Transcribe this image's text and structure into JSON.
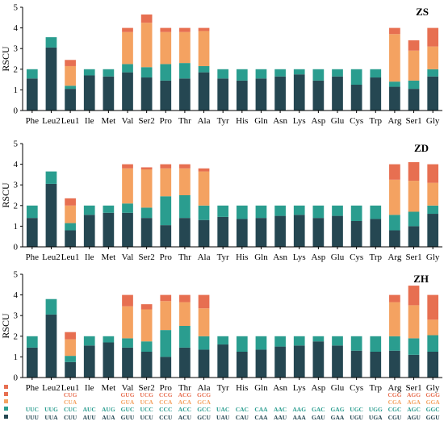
{
  "colors": {
    "layer1": "#254752",
    "layer2": "#2a9d8f",
    "layer3": "#f4a261",
    "layer4": "#e76f51"
  },
  "chart_data": [
    {
      "type": "bar",
      "stacked": true,
      "title": "ZS",
      "ylabel": "RSCU",
      "ylim": [
        0,
        5
      ],
      "yticks": [
        0,
        1,
        2,
        3,
        4,
        5
      ],
      "categories": [
        "Phe",
        "Leu2",
        "Leu1",
        "Ile",
        "Met",
        "Val",
        "Ser2",
        "Pro",
        "Thr",
        "Ala",
        "Tyr",
        "His",
        "Gln",
        "Asn",
        "Lys",
        "Asp",
        "Glu",
        "Cys",
        "Trp",
        "Arg",
        "Ser1",
        "Gly"
      ],
      "series": [
        {
          "values": [
            1.55,
            3.05,
            1.05,
            1.7,
            1.65,
            1.85,
            1.6,
            1.45,
            1.55,
            1.85,
            1.55,
            1.45,
            1.55,
            1.65,
            1.75,
            1.45,
            1.65,
            1.25,
            1.6,
            1.15,
            1.05,
            1.65
          ]
        },
        {
          "values": [
            0.45,
            0.5,
            0.15,
            0.3,
            0.35,
            0.4,
            0.5,
            0.8,
            0.75,
            0.3,
            0.45,
            0.55,
            0.45,
            0.35,
            0.25,
            0.55,
            0.35,
            0.75,
            0.4,
            0.25,
            0.4,
            0.35
          ]
        },
        {
          "values": [
            0,
            0,
            0.95,
            0,
            0,
            1.55,
            2.15,
            1.55,
            1.5,
            1.7,
            0,
            0,
            0,
            0,
            0,
            0,
            0,
            0,
            0,
            2.3,
            1.45,
            1.1
          ]
        },
        {
          "values": [
            0,
            0,
            0.3,
            0,
            0,
            0.2,
            0.4,
            0.2,
            0.2,
            0.15,
            0,
            0,
            0,
            0,
            0,
            0,
            0,
            0,
            0,
            0.3,
            0.5,
            0.9
          ]
        }
      ]
    },
    {
      "type": "bar",
      "stacked": true,
      "title": "ZD",
      "ylabel": "RSCU",
      "ylim": [
        0,
        5
      ],
      "yticks": [
        0,
        1,
        2,
        3,
        4,
        5
      ],
      "categories": [
        "Phe",
        "Leu2",
        "Leu1",
        "Ile",
        "Met",
        "Val",
        "Ser2",
        "Pro",
        "Thr",
        "Ala",
        "Tyr",
        "His",
        "Gln",
        "Asn",
        "Lys",
        "Asp",
        "Glu",
        "Cys",
        "Trp",
        "Arg",
        "Ser1",
        "Gly"
      ],
      "series": [
        {
          "values": [
            1.4,
            3.05,
            0.8,
            1.55,
            1.65,
            1.65,
            1.4,
            1.05,
            1.4,
            1.3,
            1.45,
            1.35,
            1.4,
            1.5,
            1.55,
            1.4,
            1.5,
            1.25,
            1.35,
            0.8,
            1.0,
            1.6
          ]
        },
        {
          "values": [
            0.6,
            0.6,
            0.35,
            0.45,
            0.35,
            0.45,
            0.5,
            1.4,
            1.1,
            0.7,
            0.55,
            0.65,
            0.6,
            0.5,
            0.45,
            0.6,
            0.5,
            0.75,
            0.65,
            0.75,
            0.7,
            0.4
          ]
        },
        {
          "values": [
            0,
            0,
            0.85,
            0,
            0,
            1.7,
            1.85,
            1.35,
            1.3,
            1.65,
            0,
            0,
            0,
            0,
            0,
            0,
            0,
            0,
            0,
            1.7,
            1.5,
            1.1
          ]
        },
        {
          "values": [
            0,
            0,
            0.35,
            0,
            0,
            0.2,
            0.1,
            0.2,
            0.2,
            0.15,
            0,
            0,
            0,
            0,
            0,
            0,
            0,
            0,
            0,
            0.75,
            0.9,
            0.9
          ]
        }
      ]
    },
    {
      "type": "bar",
      "stacked": true,
      "title": "ZH",
      "ylabel": "RSCU",
      "ylim": [
        0,
        5
      ],
      "yticks": [
        0,
        1,
        2,
        3,
        4,
        5
      ],
      "categories": [
        "Phe",
        "Leu2",
        "Leu1",
        "Ile",
        "Met",
        "Val",
        "Ser2",
        "Pro",
        "Thr",
        "Ala",
        "Tyr",
        "His",
        "Gln",
        "Asn",
        "Lys",
        "Asp",
        "Glu",
        "Cys",
        "Trp",
        "Arg",
        "Ser1",
        "Gly"
      ],
      "series": [
        {
          "values": [
            1.45,
            3.05,
            0.75,
            1.55,
            1.7,
            1.45,
            1.25,
            1.0,
            1.45,
            1.35,
            1.6,
            1.25,
            1.35,
            1.5,
            1.55,
            1.75,
            1.55,
            1.3,
            1.25,
            1.3,
            1.1,
            1.25
          ]
        },
        {
          "values": [
            0.55,
            0.75,
            0.3,
            0.45,
            0.3,
            0.45,
            0.5,
            1.3,
            1.05,
            0.65,
            0.4,
            0.75,
            0.65,
            0.5,
            0.45,
            0.25,
            0.45,
            0.7,
            0.75,
            0.7,
            0.8,
            0.8
          ]
        },
        {
          "values": [
            0,
            0,
            0.8,
            0,
            0,
            1.55,
            1.55,
            1.4,
            1.15,
            1.35,
            0,
            0,
            0,
            0,
            0,
            0,
            0,
            0,
            0,
            1.65,
            1.6,
            0.75
          ]
        },
        {
          "values": [
            0,
            0,
            0.35,
            0,
            0,
            0.55,
            0.25,
            0.3,
            0.35,
            0.65,
            0,
            0,
            0,
            0,
            0,
            0,
            0,
            0,
            0,
            0.35,
            0.95,
            1.2
          ]
        }
      ]
    }
  ],
  "codon_table": {
    "rows": [
      [
        "",
        "",
        "",
        "",
        "",
        "",
        "",
        "",
        "",
        "",
        "",
        "",
        "",
        "",
        "",
        "",
        "",
        "",
        "",
        "",
        "",
        ""
      ],
      [
        "",
        "",
        "CUG",
        "",
        "",
        "GUG",
        "UCG",
        "CCG",
        "ACG",
        "GCG",
        "",
        "",
        "",
        "",
        "",
        "",
        "",
        "",
        "",
        "CGG",
        "AGG",
        "GGG"
      ],
      [
        "",
        "",
        "CUA",
        "",
        "",
        "GUA",
        "UCA",
        "CCA",
        "ACA",
        "GCA",
        "",
        "",
        "",
        "",
        "",
        "",
        "",
        "",
        "",
        "CGA",
        "AGA",
        "GGA"
      ],
      [
        "UUC",
        "UUG",
        "CUC",
        "AUC",
        "AUG",
        "GUC",
        "UCC",
        "CCC",
        "ACC",
        "GCC",
        "UAC",
        "CAC",
        "CAA",
        "AAC",
        "AAG",
        "GAC",
        "GAG",
        "UGC",
        "UGG",
        "CGC",
        "AGC",
        "GGC"
      ],
      [
        "UUU",
        "UUA",
        "CUU",
        "AUU",
        "AUA",
        "GUU",
        "UCU",
        "CCU",
        "ACU",
        "GCU",
        "UAU",
        "CAU",
        "CAA",
        "AAU",
        "AAA",
        "GAU",
        "GAA",
        "UGU",
        "UGA",
        "CGU",
        "AGU",
        "GGU"
      ]
    ]
  }
}
